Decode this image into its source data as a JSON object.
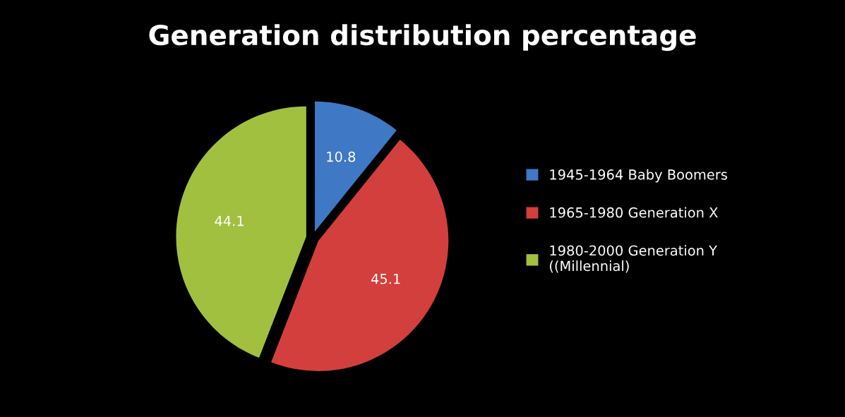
{
  "chart_data": {
    "type": "pie",
    "title": "Generation distribution percentage",
    "categories": [
      "1945-1964 Baby Boomers",
      "1965-1980 Generation X",
      "1980-2000 Generation Y ((Millennial)"
    ],
    "values": [
      10.8,
      45.1,
      44.1
    ],
    "colors": [
      "#3f78c4",
      "#d23f3c",
      "#a2c040"
    ],
    "data_labels": true,
    "legend": "right"
  }
}
